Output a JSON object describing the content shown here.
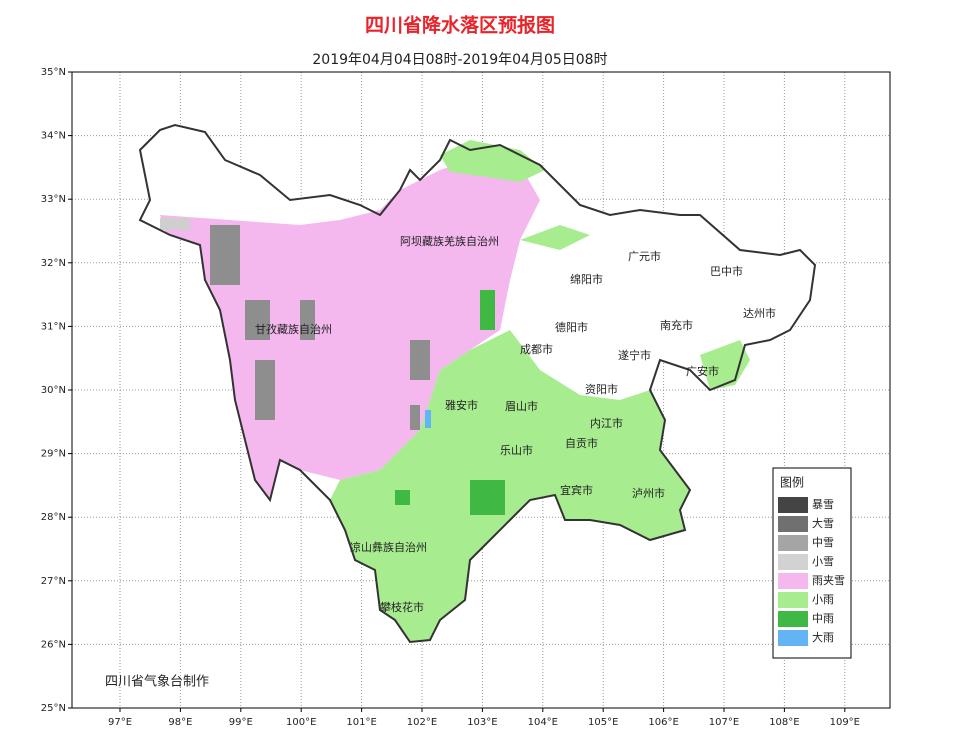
{
  "header": {
    "title": "四川省降水落区预报图",
    "subtitle": "2019年04月04日08时-2019年04月05日08时"
  },
  "axes": {
    "lat_labels": [
      "35°N",
      "34°N",
      "33°N",
      "32°N",
      "31°N",
      "30°N",
      "29°N",
      "28°N",
      "27°N",
      "26°N",
      "25°N"
    ],
    "lon_labels": [
      "97°E",
      "98°E",
      "99°E",
      "100°E",
      "101°E",
      "102°E",
      "103°E",
      "104°E",
      "105°E",
      "106°E",
      "107°E",
      "108°E",
      "109°E"
    ]
  },
  "places": [
    "阿坝藏族羌族自治州",
    "甘孜藏族自治州",
    "绵阳市",
    "广元市",
    "巴中市",
    "达州市",
    "德阳市",
    "南充市",
    "成都市",
    "遂宁市",
    "广安市",
    "资阳市",
    "雅安市",
    "眉山市",
    "内江市",
    "自贡市",
    "乐山市",
    "宜宾市",
    "泸州市",
    "凉山彝族自治州",
    "攀枝花市"
  ],
  "legend": {
    "title": "图例",
    "items": [
      "暴雪",
      "大雪",
      "中雪",
      "小雪",
      "雨夹雪",
      "小雨",
      "中雨",
      "大雨"
    ]
  },
  "footer": "四川省气象台制作"
}
